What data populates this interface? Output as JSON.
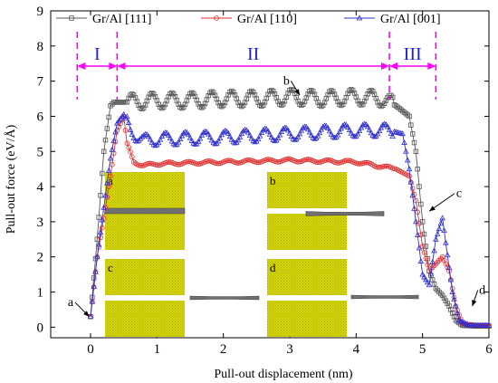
{
  "chart_data": {
    "type": "line",
    "xlabel": "Pull-out displacement (nm)",
    "ylabel": "Pull-out force (eV/Å)",
    "xlim": [
      -0.6,
      6
    ],
    "ylim": [
      -0.3,
      9
    ],
    "xticks": [
      0,
      1,
      2,
      3,
      4,
      5,
      6
    ],
    "yticks": [
      0,
      1,
      2,
      3,
      4,
      5,
      6,
      7,
      8,
      9
    ],
    "legend_position": "top",
    "series": [
      {
        "name": "Gr/Al [111]",
        "color": "#555555",
        "marker": "square",
        "x": [
          0,
          0.1,
          0.2,
          0.3,
          0.35,
          0.4,
          0.5,
          1.0,
          1.5,
          2.0,
          2.5,
          3.0,
          3.5,
          4.0,
          4.4,
          4.6,
          4.8,
          4.9,
          5.0,
          5.1,
          5.2,
          5.3,
          5.4,
          5.5,
          5.6,
          5.8,
          6.0
        ],
        "y": [
          0.3,
          2.5,
          5.0,
          6.3,
          6.4,
          6.4,
          6.4,
          6.45,
          6.45,
          6.5,
          6.5,
          6.55,
          6.5,
          6.55,
          6.5,
          6.3,
          6.0,
          5.0,
          3.0,
          1.6,
          1.1,
          0.9,
          0.6,
          0.2,
          0.05,
          0.03,
          0.03
        ],
        "amplitude": 0.22
      },
      {
        "name": "Gr/Al [110]",
        "color": "#e03030",
        "marker": "circle",
        "x": [
          0,
          0.1,
          0.2,
          0.3,
          0.4,
          0.5,
          0.55,
          0.65,
          0.8,
          1.0,
          2.0,
          3.0,
          4.0,
          4.3,
          4.6,
          4.8,
          4.9,
          5.0,
          5.1,
          5.2,
          5.3,
          5.4,
          5.5,
          5.6,
          5.8,
          6.0
        ],
        "y": [
          0.3,
          2.0,
          3.1,
          4.3,
          5.6,
          6.0,
          5.2,
          4.7,
          4.6,
          4.65,
          4.7,
          4.75,
          4.7,
          4.6,
          4.5,
          4.3,
          3.6,
          2.3,
          1.6,
          1.8,
          2.0,
          1.6,
          0.6,
          0.1,
          0.05,
          0.05
        ],
        "amplitude": 0.04
      },
      {
        "name": "Gr/Al [001]",
        "color": "#3030d0",
        "marker": "triangle",
        "x": [
          0,
          0.1,
          0.2,
          0.3,
          0.4,
          0.5,
          0.6,
          0.8,
          1.0,
          2.0,
          3.0,
          4.0,
          4.5,
          4.7,
          4.8,
          4.9,
          5.0,
          5.1,
          5.2,
          5.3,
          5.35,
          5.45,
          5.55,
          5.7,
          6.0
        ],
        "y": [
          0.3,
          2.0,
          3.4,
          4.8,
          5.8,
          6.05,
          5.6,
          5.3,
          5.35,
          5.4,
          5.5,
          5.6,
          5.6,
          5.5,
          4.5,
          3.0,
          1.5,
          1.2,
          2.5,
          3.1,
          2.4,
          1.0,
          0.2,
          0.05,
          0.05
        ],
        "amplitude": 0.18
      }
    ],
    "regions": [
      {
        "label": "I",
        "from": -0.2,
        "to": 0.4
      },
      {
        "label": "II",
        "from": 0.4,
        "to": 4.5
      },
      {
        "label": "III",
        "from": 4.5,
        "to": 5.2
      }
    ],
    "region_boundaries": [
      -0.2,
      0.4,
      4.5,
      5.2
    ],
    "annotations": [
      {
        "text": "a",
        "x": -0.3,
        "y": 0.6,
        "to_x": -0.02,
        "to_y": 0.3
      },
      {
        "text": "b",
        "x": 2.95,
        "y": 6.9,
        "to_x": 3.15,
        "to_y": 6.6
      },
      {
        "text": "c",
        "x": 5.55,
        "y": 3.7,
        "to_x": 5.1,
        "to_y": 3.3
      },
      {
        "text": "d",
        "x": 5.9,
        "y": 0.95,
        "to_x": 5.75,
        "to_y": 0.6
      }
    ],
    "inset_labels": [
      "a",
      "b",
      "c",
      "d"
    ],
    "colors": {
      "region_marker": "#ff00ff",
      "region_text": "#2020d0",
      "inset_block": "#c8c800",
      "graphene": "#707070"
    }
  }
}
